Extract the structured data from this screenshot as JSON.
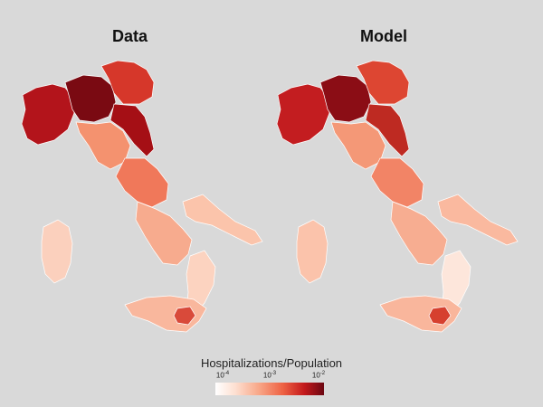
{
  "panels": [
    {
      "title": "Data"
    },
    {
      "title": "Model"
    }
  ],
  "legend": {
    "title": "Hospitalizations/Population",
    "ticks": [
      {
        "base": "10",
        "exp": "-4"
      },
      {
        "base": "10",
        "exp": "-3"
      },
      {
        "base": "10",
        "exp": "-2"
      }
    ],
    "scale": "log",
    "range": [
      0.0001,
      0.01
    ],
    "colormap": [
      "#ffffff",
      "#fde0d2",
      "#f8a788",
      "#ee6244",
      "#c3191c",
      "#6b0712"
    ]
  },
  "regions": {
    "data": {
      "northwest": "#b3141b",
      "lombardy_core": "#7a0a12",
      "northeast": "#d6372a",
      "adriatic_north": "#a50f15",
      "central": "#f0785a",
      "tuscany": "#f4926f",
      "south": "#f7ab8e",
      "puglia": "#fbc4ab",
      "calabria": "#fcd3c0",
      "sardinia": "#fbd0bd",
      "sicily": "#f9b79d",
      "sicily_hotspot": "#d94a3a"
    },
    "model": {
      "northwest": "#c31d20",
      "lombardy_core": "#8b0d15",
      "northeast": "#dd4632",
      "adriatic_north": "#be2a22",
      "central": "#f28466",
      "tuscany": "#f49877",
      "south": "#f7ad91",
      "puglia": "#fab99f",
      "calabria": "#fde6db",
      "sardinia": "#fbc3ab",
      "sicily": "#f9b69c",
      "sicily_hotspot": "#d6402f"
    }
  }
}
